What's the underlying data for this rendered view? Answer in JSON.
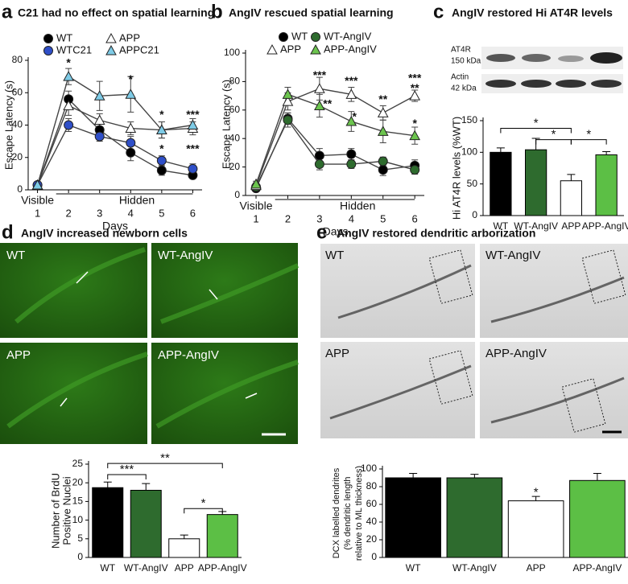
{
  "chart_data": [
    {
      "type": "line",
      "panel": "a",
      "title": "C21 had no effect on spatial learning",
      "x": [
        1,
        2,
        3,
        4,
        5,
        6
      ],
      "xlim": [
        0.7,
        6.3
      ],
      "xticks": [
        1,
        2,
        3,
        4,
        5,
        6
      ],
      "xlabel": "Days",
      "ylim": [
        0,
        80
      ],
      "yticks": [
        0,
        20,
        40,
        60,
        80
      ],
      "ylabel": "Escape Latency (s)",
      "phase_labels": [
        "Visible",
        "Hidden"
      ],
      "series": [
        {
          "name": "WT",
          "color": "#000000",
          "marker": "circle",
          "values": [
            3,
            56,
            37,
            23,
            12,
            9
          ],
          "errors": [
            1,
            5,
            4,
            5,
            3,
            2
          ]
        },
        {
          "name": "WTC21",
          "color": "#2f4fc8",
          "marker": "circle",
          "values": [
            3,
            40,
            33,
            29,
            18,
            13
          ],
          "errors": [
            1,
            4,
            3,
            4,
            3,
            3
          ]
        },
        {
          "name": "APP",
          "color": "#ffffff",
          "marker": "triangle",
          "values": [
            3,
            52,
            43,
            38,
            37,
            38
          ],
          "errors": [
            1,
            6,
            4,
            4,
            5,
            4
          ]
        },
        {
          "name": "APPC21",
          "color": "#7ecbe6",
          "marker": "triangle",
          "values": [
            3,
            70,
            58,
            59,
            37,
            40
          ],
          "errors": [
            1,
            5,
            9,
            11,
            5,
            4
          ]
        }
      ],
      "annotations": [
        {
          "text": "*",
          "x": 2,
          "y": 78
        },
        {
          "text": "*",
          "x": 4,
          "y": 68
        },
        {
          "text": "*",
          "x": 5,
          "y": 46
        },
        {
          "text": "*",
          "x": 5,
          "y": 25
        },
        {
          "text": "***",
          "x": 6,
          "y": 46
        },
        {
          "text": "***",
          "x": 6,
          "y": 25
        }
      ]
    },
    {
      "type": "line",
      "panel": "b",
      "title": "AngIV rescued spatial learning",
      "x": [
        1,
        2,
        3,
        4,
        5,
        6
      ],
      "xlim": [
        0.67,
        6.3
      ],
      "xticks": [
        1,
        2,
        3,
        4,
        5,
        6
      ],
      "xlabel": "Days",
      "ylim": [
        0,
        100
      ],
      "yticks": [
        0,
        20,
        40,
        60,
        80,
        100
      ],
      "ylabel": "Escape Latency (s)",
      "phase_labels": [
        "Visible",
        "Hidden"
      ],
      "series": [
        {
          "name": "WT",
          "color": "#000000",
          "marker": "circle",
          "values": [
            5,
            54,
            28,
            29,
            18,
            21
          ],
          "errors": [
            2,
            4,
            5,
            4,
            4,
            4
          ]
        },
        {
          "name": "WT-AngIV",
          "color": "#2e6b2e",
          "marker": "circle",
          "values": [
            6,
            53,
            22,
            22,
            24,
            18
          ],
          "errors": [
            2,
            5,
            4,
            3,
            3,
            3
          ]
        },
        {
          "name": "APP",
          "color": "#ffffff",
          "marker": "triangle",
          "values": [
            7,
            66,
            75,
            71,
            58,
            70
          ],
          "errors": [
            2,
            6,
            8,
            5,
            5,
            4
          ]
        },
        {
          "name": "APP-AngIV",
          "color": "#6cc44e",
          "marker": "triangle",
          "values": [
            8,
            71,
            63,
            52,
            45,
            42
          ],
          "errors": [
            2,
            5,
            8,
            7,
            8,
            6
          ]
        }
      ],
      "annotations": [
        {
          "text": "***",
          "x": 3,
          "y": 84
        },
        {
          "text": "**",
          "x": 3.25,
          "y": 64
        },
        {
          "text": "***",
          "x": 4,
          "y": 80
        },
        {
          "text": "*",
          "x": 4.1,
          "y": 55
        },
        {
          "text": "**",
          "x": 5,
          "y": 67
        },
        {
          "text": "***",
          "x": 6,
          "y": 82
        },
        {
          "text": "**",
          "x": 6,
          "y": 75
        },
        {
          "text": "*",
          "x": 6,
          "y": 50
        }
      ]
    },
    {
      "type": "bar",
      "panel": "c",
      "title": "AngIV restored Hi AT4R levels",
      "blot_labels": [
        "AT4R",
        "150 kDa",
        "Actin",
        "42 kDa"
      ],
      "categories": [
        "WT",
        "WT-AngIV",
        "APP",
        "APP-AngIV"
      ],
      "values": [
        100,
        104,
        55,
        96
      ],
      "errors": [
        7,
        18,
        10,
        5
      ],
      "colors": [
        "#000000",
        "#2e6b2e",
        "#ffffff",
        "#5cbf45"
      ],
      "ylim": [
        0,
        150
      ],
      "yticks": [
        0,
        50,
        100,
        150
      ],
      "ylabel": "Hi AT4R levels (%WT)",
      "significance": [
        {
          "from": 0,
          "to": 2,
          "y": 138,
          "label": "*"
        },
        {
          "from": 1,
          "to": 2,
          "y": 120,
          "label": "*"
        },
        {
          "from": 2,
          "to": 3,
          "y": 120,
          "label": "*"
        }
      ]
    },
    {
      "type": "bar",
      "panel": "d",
      "title": "AngIV increased newborn cells",
      "image_labels": [
        "WT",
        "WT-AngIV",
        "APP",
        "APP-AngIV"
      ],
      "categories": [
        "WT",
        "WT-AngIV",
        "APP",
        "APP-AngIV"
      ],
      "values": [
        18.7,
        18,
        5,
        11.5
      ],
      "errors": [
        1.5,
        1.8,
        1,
        0.8
      ],
      "colors": [
        "#000000",
        "#2e6b2e",
        "#ffffff",
        "#5cbf45"
      ],
      "ylim": [
        0,
        25
      ],
      "yticks": [
        0,
        5,
        10,
        15,
        20,
        25
      ],
      "ylabel": [
        "Number of BrdU",
        "Positive Nuclei"
      ],
      "significance": [
        {
          "from": 0,
          "to": 1,
          "y": 22.2,
          "label": "***"
        },
        {
          "from": 0,
          "to": 3,
          "y": 25.2,
          "label": "**"
        },
        {
          "from": 2,
          "to": 3,
          "y": 13.1,
          "label": "*"
        }
      ]
    },
    {
      "type": "bar",
      "panel": "e",
      "title": "AngIV restored dendritic arborization",
      "image_labels": [
        "WT",
        "WT-AngIV",
        "APP",
        "APP-AngIV"
      ],
      "categories": [
        "WT",
        "WT-AngIV",
        "APP",
        "APP-AngIV"
      ],
      "values": [
        90,
        90,
        64,
        87
      ],
      "errors": [
        5,
        4,
        5,
        8
      ],
      "colors": [
        "#000000",
        "#2e6b2e",
        "#ffffff",
        "#5cbf45"
      ],
      "ylim": [
        0,
        100
      ],
      "yticks": [
        0,
        20,
        40,
        60,
        80,
        100
      ],
      "ylabel": [
        "DCX labelled dendrites",
        "(% dendritic length",
        "relative to ML thickness)"
      ],
      "annotations": [
        {
          "text": "*",
          "x": 2,
          "y": 73
        }
      ]
    }
  ]
}
